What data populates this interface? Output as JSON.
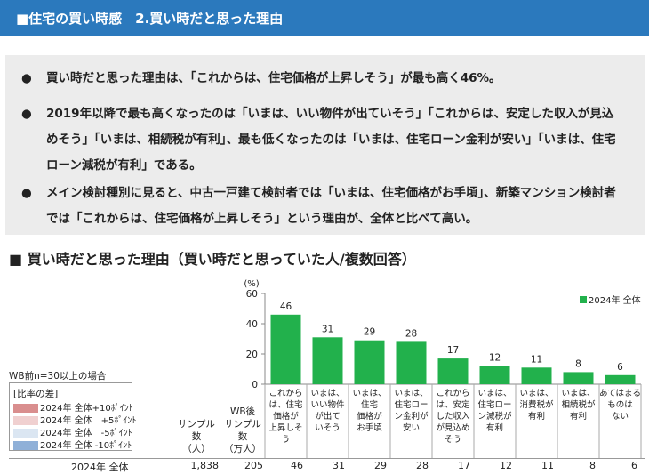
{
  "header": {
    "title": "■住宅の買い時感　2.買い時だと思った理由"
  },
  "summary": {
    "bullets": [
      {
        "symbol": "●",
        "text": "買い時だと思った理由は、「これからは、住宅価格が上昇しそう」が最も高く46%。"
      },
      {
        "symbol": "●",
        "text": "2019年以降で最も高くなったのは「いまは、いい物件が出ていそう」「これからは、安定した収入が見込めそう」「いまは、相続税が有利」、最も低くなったのは「いまは、住宅ローン金利が安い」「いまは、住宅ローン減税が有利」である。"
      },
      {
        "symbol": "●",
        "text": "メイン検討種別に見ると、中古一戸建て検討者では「いまは、住宅価格がお手頃」、新築マンション検討者では「これからは、住宅価格が上昇しそう」という理由が、全体と比べて高い。"
      }
    ]
  },
  "section_title": "■ 買い時だと思った理由（買い時だと思っていた人/複数回答）",
  "note": "WB前n=30以上の場合",
  "legend_diff": {
    "title": "[比率の差]",
    "items": [
      {
        "label": "2024年 全体+10ﾎﾟｲﾝﾄ",
        "color": "#d98e8e"
      },
      {
        "label": "2024年 全体　+5ﾎﾟｲﾝﾄ",
        "color": "#f0d0d0"
      },
      {
        "label": "2024年 全体　-5ﾎﾟｲﾝﾄ",
        "color": "#dbe6f2"
      },
      {
        "label": "2024年 全体 -10ﾎﾟｲﾝﾄ",
        "color": "#8fb0d8"
      }
    ]
  },
  "columns": {
    "sample": [
      "サンプル",
      "数",
      "（人）"
    ],
    "wb_sample": [
      "WB後",
      "サンプル",
      "数",
      "（万人）"
    ]
  },
  "row": {
    "label": "2024年 全体",
    "sample": "1,838",
    "wb": "205"
  },
  "chart_data": {
    "type": "bar",
    "unit_label": "(%)",
    "ylim": [
      0,
      60
    ],
    "yticks": [
      0,
      20,
      40,
      60
    ],
    "bar_color": "#22b14c",
    "categories": [
      [
        "これから",
        "は、住宅",
        "価格が",
        "上昇しそ",
        "う"
      ],
      [
        "いまは、",
        "いい物件",
        "が出て",
        "いそう"
      ],
      [
        "いまは、",
        "住宅",
        "価格が",
        "お手頃"
      ],
      [
        "いまは、",
        "住宅ロー",
        "ン金利が",
        "安い"
      ],
      [
        "これから",
        "は、安定",
        "した収入",
        "が見込め",
        "そう"
      ],
      [
        "いまは、",
        "住宅ロー",
        "ン減税が",
        "有利"
      ],
      [
        "いまは、",
        "消費税が",
        "有利"
      ],
      [
        "いまは、",
        "相続税が",
        "有利"
      ],
      [
        "あてはまる",
        "ものは",
        "ない"
      ]
    ],
    "series": [
      {
        "name": "2024年 全体",
        "values": [
          46,
          31,
          29,
          28,
          17,
          12,
          11,
          8,
          6
        ]
      }
    ]
  }
}
